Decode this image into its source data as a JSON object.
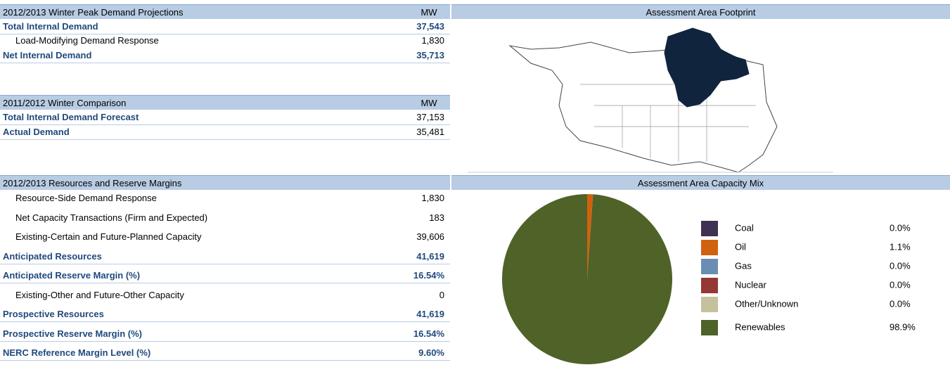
{
  "projections": {
    "header": "2012/2013 Winter Peak Demand Projections",
    "unit": "MW",
    "rows": [
      [
        "Total Internal Demand",
        "37,543"
      ],
      [
        "Load-Modifying Demand Response",
        "1,830"
      ],
      [
        "Net Internal Demand",
        "35,713"
      ]
    ]
  },
  "comparison": {
    "header": "2011/2012 Winter Comparison",
    "unit": "MW",
    "rows": [
      [
        "Total Internal Demand Forecast",
        "37,153"
      ],
      [
        "Actual Demand",
        "35,481"
      ]
    ]
  },
  "resources": {
    "header": "2012/2013 Resources and Reserve Margins",
    "rows": [
      [
        "Resource-Side Demand Response",
        "1,830"
      ],
      [
        "Net Capacity Transactions (Firm and Expected)",
        "183"
      ],
      [
        "Existing-Certain and Future-Planned Capacity",
        "39,606"
      ],
      [
        "Anticipated Resources",
        "41,619"
      ],
      [
        "Anticipated Reserve Margin (%)",
        "16.54%"
      ],
      [
        "Existing-Other and Future-Other Capacity",
        "0"
      ],
      [
        "Prospective Resources",
        "41,619"
      ],
      [
        "Prospective Reserve Margin (%)",
        "16.54%"
      ],
      [
        "NERC Reference Margin Level (%)",
        "9.60%"
      ]
    ]
  },
  "footprint": {
    "title": "Assessment Area Footprint"
  },
  "chart_data": {
    "type": "pie",
    "title": "Assessment Area Capacity Mix",
    "categories": [
      "Coal",
      "Oil",
      "Gas",
      "Nuclear",
      "Other/Unknown",
      "Renewables"
    ],
    "values": [
      0,
      1.1,
      0,
      0,
      0,
      98.9
    ],
    "value_labels": [
      "0.0%",
      "1.1%",
      "0.0%",
      "0.0%",
      "0.0%",
      "98.9%"
    ],
    "colors": [
      "#3f3151",
      "#d0620f",
      "#6a8db4",
      "#953735",
      "#c7c09c",
      "#4f6228"
    ]
  }
}
